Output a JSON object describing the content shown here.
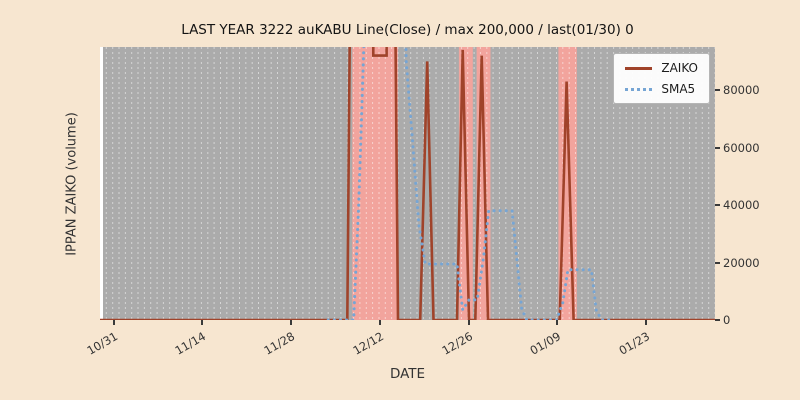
{
  "colors": {
    "figure_bg": "#f7e6d0",
    "plot_bg": "#ababab",
    "highlight_band": "#f2a49d",
    "gridline": "#ffffff",
    "zaiko_line": "#a0432a",
    "sma5_line": "#76a5d4",
    "text": "#333333"
  },
  "chart_data": {
    "type": "line",
    "title": "LAST YEAR 3222 auKABU Line(Close) / max 200,000 / last(01/30) 0",
    "xlabel": "DATE",
    "ylabel": "IPPAN ZAIKO (volume)",
    "xlim_days": [
      0,
      97
    ],
    "ylim": [
      0,
      95000
    ],
    "grid": "vertical-dashed-daily",
    "legend_position": "upper right",
    "x_ticks": [
      {
        "day": 2,
        "label": "10/31"
      },
      {
        "day": 16,
        "label": "11/14"
      },
      {
        "day": 30,
        "label": "11/28"
      },
      {
        "day": 44,
        "label": "12/12"
      },
      {
        "day": 58,
        "label": "12/26"
      },
      {
        "day": 72,
        "label": "01/09"
      },
      {
        "day": 86,
        "label": "01/23"
      }
    ],
    "y_ticks": [
      {
        "value": 0,
        "label": "0"
      },
      {
        "value": 20000,
        "label": "20000"
      },
      {
        "value": 40000,
        "label": "40000"
      },
      {
        "value": 60000,
        "label": "60000"
      },
      {
        "value": 80000,
        "label": "80000"
      }
    ],
    "highlight_spans_days": [
      [
        39.8,
        47.0
      ],
      [
        56.6,
        58.8
      ],
      [
        59.4,
        61.6
      ],
      [
        72.3,
        75.2
      ]
    ],
    "series": [
      {
        "name": "ZAIKO",
        "style": "solid",
        "color": "#a0432a",
        "points": [
          [
            0,
            0
          ],
          [
            39,
            0
          ],
          [
            39.8,
            200000
          ],
          [
            43,
            200000
          ],
          [
            43.1,
            92000
          ],
          [
            45.2,
            92000
          ],
          [
            45.3,
            200000
          ],
          [
            46.2,
            200000
          ],
          [
            47,
            0
          ],
          [
            50.5,
            0
          ],
          [
            51.6,
            90000
          ],
          [
            52.6,
            0
          ],
          [
            56.3,
            0
          ],
          [
            57.2,
            94000
          ],
          [
            58.2,
            0
          ],
          [
            59.2,
            0
          ],
          [
            60.2,
            92000
          ],
          [
            61.2,
            0
          ],
          [
            72.5,
            0
          ],
          [
            73.6,
            83000
          ],
          [
            74.7,
            0
          ],
          [
            97,
            0
          ]
        ]
      },
      {
        "name": "SMA5",
        "style": "dotted",
        "color": "#76a5d4",
        "points": [
          [
            36,
            0
          ],
          [
            40,
            0
          ],
          [
            40.8,
            40000
          ],
          [
            41.6,
            95000
          ],
          [
            42,
            200000
          ],
          [
            47.5,
            200000
          ],
          [
            48.3,
            90000
          ],
          [
            49.3,
            62000
          ],
          [
            50.3,
            33000
          ],
          [
            51.3,
            19500
          ],
          [
            56.3,
            19500
          ],
          [
            57.2,
            3500
          ],
          [
            58.2,
            7000
          ],
          [
            59.5,
            7000
          ],
          [
            60.5,
            22000
          ],
          [
            61.3,
            38000
          ],
          [
            65,
            38000
          ],
          [
            65.8,
            20000
          ],
          [
            66.5,
            4000
          ],
          [
            67.3,
            0
          ],
          [
            72,
            0
          ],
          [
            73,
            6000
          ],
          [
            73.8,
            17500
          ],
          [
            77.5,
            17500
          ],
          [
            78.3,
            3000
          ],
          [
            79.2,
            0
          ],
          [
            80.5,
            0
          ]
        ]
      }
    ],
    "annotations": {
      "max_note": "max 200,000",
      "last_note": "last(01/30) 0"
    }
  }
}
